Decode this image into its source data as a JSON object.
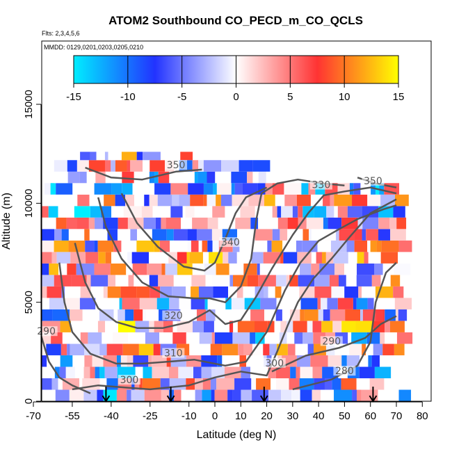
{
  "chart_data": {
    "type": "heatmap",
    "title": "ATOM2 Southbound CO_PECD_m_CO_QCLS",
    "subtitle_flights": "Flts: 2,3,4,5,6",
    "subtitle_dates": "MMDD: 0129,0201,0203,0205,0210",
    "xlabel": "Latitude (deg N)",
    "ylabel": "Altitude (m)",
    "xlim": [
      -70,
      80
    ],
    "ylim": [
      0,
      17500
    ],
    "xticks": [
      -70,
      -55,
      -40,
      -25,
      -10,
      0,
      10,
      20,
      30,
      40,
      50,
      60,
      70,
      80
    ],
    "yticks": [
      0,
      5000,
      10000,
      15000
    ],
    "colorbar": {
      "ticks": [
        -15,
        -10,
        -5,
        0,
        5,
        10,
        15
      ],
      "range": [
        -15,
        15
      ],
      "colors": [
        "#00eeff",
        "#2233ff",
        "#ffffff",
        "#ff3333",
        "#ffff00"
      ]
    },
    "contours": [
      {
        "level": "280",
        "points": [
          [
            30,
            600
          ],
          [
            45,
            1100
          ],
          [
            55,
            1800
          ],
          [
            60,
            3000
          ],
          [
            62,
            5000
          ],
          [
            66,
            6500
          ],
          [
            70,
            7000
          ]
        ]
      },
      {
        "level": "290",
        "points": [
          [
            22,
            1500
          ],
          [
            35,
            2300
          ],
          [
            48,
            2700
          ],
          [
            58,
            3200
          ],
          [
            64,
            3900
          ],
          [
            70,
            4300
          ]
        ]
      },
      {
        "level": "290",
        "points": [
          [
            -67,
            3300
          ],
          [
            -64,
            2000
          ],
          [
            -60,
            1200
          ],
          [
            -55,
            800
          ],
          [
            -48,
            400
          ]
        ]
      },
      {
        "level": "300",
        "points": [
          [
            -55,
            600
          ],
          [
            -45,
            800
          ],
          [
            -35,
            700
          ],
          [
            -25,
            600
          ],
          [
            -10,
            800
          ],
          [
            0,
            1200
          ],
          [
            10,
            1500
          ],
          [
            20,
            1300
          ],
          [
            24,
            2500
          ],
          [
            28,
            3800
          ],
          [
            32,
            5000
          ],
          [
            38,
            6200
          ],
          [
            45,
            7200
          ],
          [
            52,
            8300
          ],
          [
            60,
            9500
          ],
          [
            70,
            10200
          ]
        ]
      },
      {
        "level": "310",
        "points": [
          [
            -60,
            7000
          ],
          [
            -58,
            5000
          ],
          [
            -55,
            3500
          ],
          [
            -48,
            2400
          ],
          [
            -38,
            1900
          ],
          [
            -28,
            1900
          ],
          [
            -18,
            2000
          ],
          [
            -8,
            2100
          ],
          [
            4,
            1800
          ],
          [
            12,
            2000
          ],
          [
            20,
            3500
          ],
          [
            27,
            5600
          ],
          [
            33,
            7000
          ],
          [
            40,
            8100
          ],
          [
            48,
            8700
          ],
          [
            55,
            9200
          ],
          [
            65,
            9700
          ],
          [
            70,
            9900
          ]
        ]
      },
      {
        "level": "320",
        "points": [
          [
            -54,
            8000
          ],
          [
            -50,
            6000
          ],
          [
            -45,
            4700
          ],
          [
            -38,
            4000
          ],
          [
            -30,
            3700
          ],
          [
            -20,
            3700
          ],
          [
            -10,
            4000
          ],
          [
            -2,
            4600
          ],
          [
            4,
            3900
          ],
          [
            10,
            4100
          ],
          [
            16,
            5300
          ],
          [
            22,
            6700
          ],
          [
            30,
            8400
          ],
          [
            36,
            9500
          ],
          [
            42,
            10400
          ],
          [
            50,
            10600
          ],
          [
            60,
            10800
          ],
          [
            70,
            10500
          ]
        ]
      },
      {
        "level": "330",
        "points": [
          [
            -45,
            10300
          ],
          [
            -42,
            8800
          ],
          [
            -36,
            7200
          ],
          [
            -28,
            6000
          ],
          [
            -18,
            5300
          ],
          [
            -8,
            5200
          ],
          [
            -2,
            5200
          ],
          [
            4,
            5000
          ],
          [
            10,
            5800
          ],
          [
            14,
            7200
          ],
          [
            16,
            9200
          ],
          [
            18,
            10500
          ],
          [
            24,
            11000
          ],
          [
            32,
            11200
          ],
          [
            42,
            11000
          ],
          [
            50,
            10900
          ]
        ]
      },
      {
        "level": "340",
        "points": [
          [
            -36,
            10500
          ],
          [
            -30,
            9000
          ],
          [
            -22,
            7800
          ],
          [
            -12,
            6800
          ],
          [
            -4,
            6600
          ],
          [
            0,
            7000
          ],
          [
            4,
            8200
          ],
          [
            8,
            9500
          ],
          [
            12,
            10300
          ],
          [
            20,
            10800
          ]
        ]
      },
      {
        "level": "350",
        "points": [
          [
            -50,
            11800
          ],
          [
            -40,
            11300
          ],
          [
            -28,
            11200
          ],
          [
            -15,
            11600
          ],
          [
            -5,
            11700
          ]
        ]
      },
      {
        "level": "350",
        "points": [
          [
            55,
            11300
          ],
          [
            62,
            11000
          ],
          [
            70,
            10800
          ]
        ]
      }
    ],
    "contour_labels": [
      {
        "text": "280",
        "x": 50,
        "y": 1400
      },
      {
        "text": "290",
        "x": 45,
        "y": 2900
      },
      {
        "text": "290",
        "x": -65,
        "y": 3400
      },
      {
        "text": "300",
        "x": -33,
        "y": 950
      },
      {
        "text": "300",
        "x": 23,
        "y": 1800
      },
      {
        "text": "310",
        "x": -16,
        "y": 2300
      },
      {
        "text": "320",
        "x": -16,
        "y": 4200
      },
      {
        "text": "330",
        "x": 41,
        "y": 10800
      },
      {
        "text": "340",
        "x": 6,
        "y": 7900
      },
      {
        "text": "350",
        "x": 61,
        "y": 11000
      },
      {
        "text": "350",
        "x": -15,
        "y": 11800
      }
    ],
    "markers": [
      {
        "label": "down-arrow",
        "x": -42
      },
      {
        "label": "down-arrow",
        "x": -17
      },
      {
        "label": "down-arrow",
        "x": 19
      },
      {
        "label": "down-arrow",
        "x": 61
      }
    ]
  }
}
